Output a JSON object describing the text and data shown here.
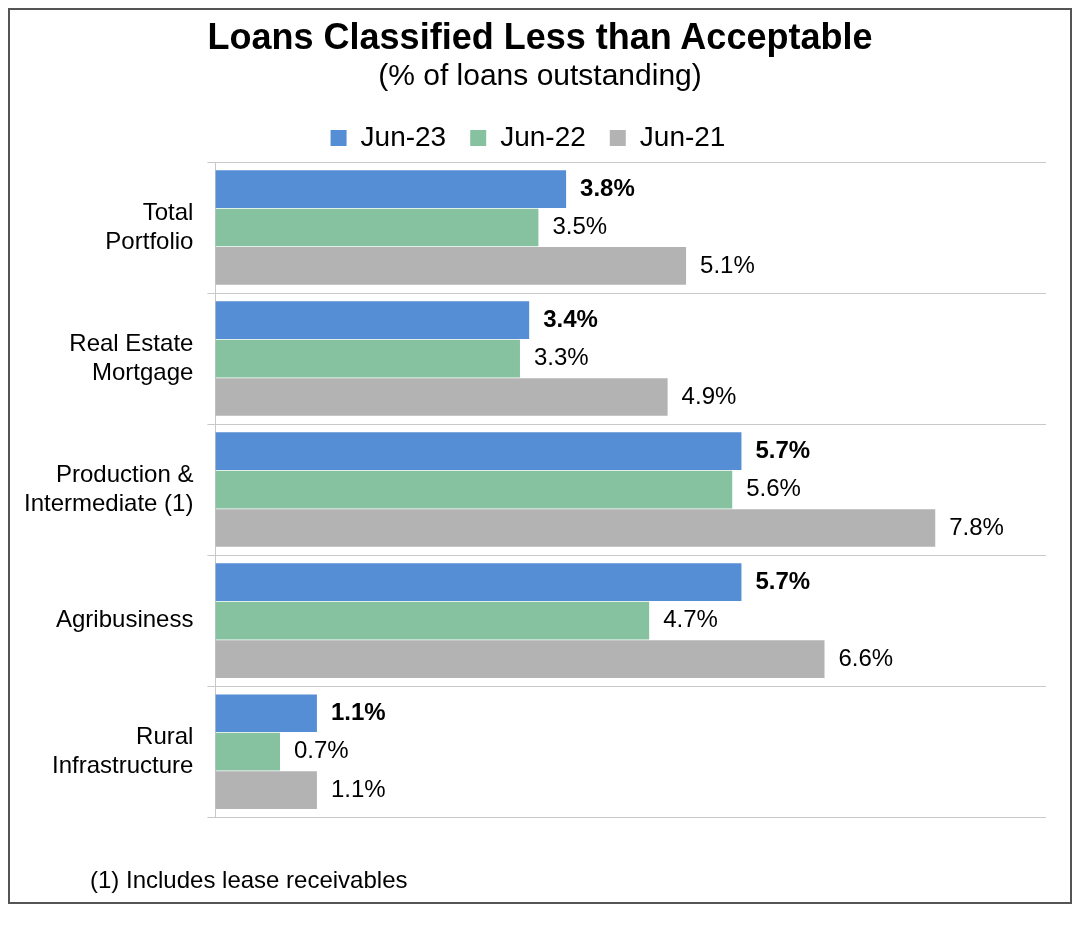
{
  "chart_data": {
    "type": "bar",
    "orientation": "horizontal",
    "title": "Loans Classified Less than Acceptable",
    "subtitle": "(% of loans outstanding)",
    "categories": [
      "Total\nPortfolio",
      "Real Estate\nMortgage",
      "Production &\nIntermediate (1)",
      "Agribusiness",
      "Rural\nInfrastructure"
    ],
    "series": [
      {
        "name": "Jun-23",
        "color": "#558ed5",
        "values": [
          3.8,
          3.4,
          5.7,
          5.7,
          1.1
        ],
        "value_labels": [
          "3.8%",
          "3.4%",
          "5.7%",
          "5.7%",
          "1.1%"
        ]
      },
      {
        "name": "Jun-22",
        "color": "#86c1a0",
        "values": [
          3.5,
          3.3,
          5.6,
          4.7,
          0.7
        ],
        "value_labels": [
          "3.5%",
          "3.3%",
          "5.6%",
          "4.7%",
          "0.7%"
        ]
      },
      {
        "name": "Jun-21",
        "color": "#b3b3b3",
        "values": [
          5.1,
          4.9,
          7.8,
          6.6,
          1.1
        ],
        "value_labels": [
          "5.1%",
          "4.9%",
          "7.8%",
          "6.6%",
          "1.1%"
        ]
      }
    ],
    "legend": "top",
    "grid": "y",
    "tick_labels": "y",
    "annotations": [
      "(1) Includes lease receivables"
    ]
  }
}
